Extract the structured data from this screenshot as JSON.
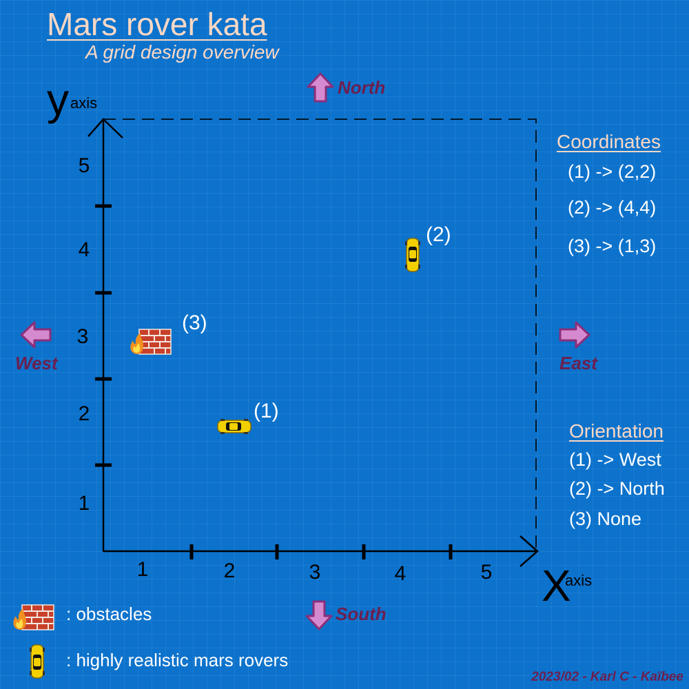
{
  "header": {
    "title": "Mars rover kata",
    "subtitle": "A grid design overview"
  },
  "axes": {
    "y_letter": "y",
    "y_word": "axis",
    "x_letter": "X",
    "x_word": "axis",
    "x_ticks": [
      "1",
      "2",
      "3",
      "4",
      "5"
    ],
    "y_ticks": [
      "1",
      "2",
      "3",
      "4",
      "5"
    ]
  },
  "directions": {
    "north": "North",
    "south": "South",
    "east": "East",
    "west": "West"
  },
  "points": {
    "rover1_label": "(1)",
    "rover2_label": "(2)",
    "obstacle3_label": "(3)"
  },
  "coordinates_panel": {
    "heading": "Coordinates",
    "lines": [
      "(1) -> (2,2)",
      "(2) -> (4,4)",
      "(3) -> (1,3)"
    ]
  },
  "orientation_panel": {
    "heading": "Orientation",
    "lines": [
      "(1) -> West",
      "(2) -> North",
      "(3) None"
    ]
  },
  "legend": {
    "obstacles": ": obstacles",
    "rovers": ": highly realistic mars rovers"
  },
  "credit": "2023/02 - Karl C - Kaïbee",
  "colors": {
    "background": "#0c72cc",
    "title": "#fcd8c4",
    "direction_label": "#6b2050",
    "arrow_fill": "#d58ad0",
    "rover": "#f2d000",
    "brick": "#c8402a"
  },
  "icons": {
    "rover": "rover-icon",
    "obstacle": "brick-wall-fire-icon",
    "direction": "arrow-icon"
  }
}
